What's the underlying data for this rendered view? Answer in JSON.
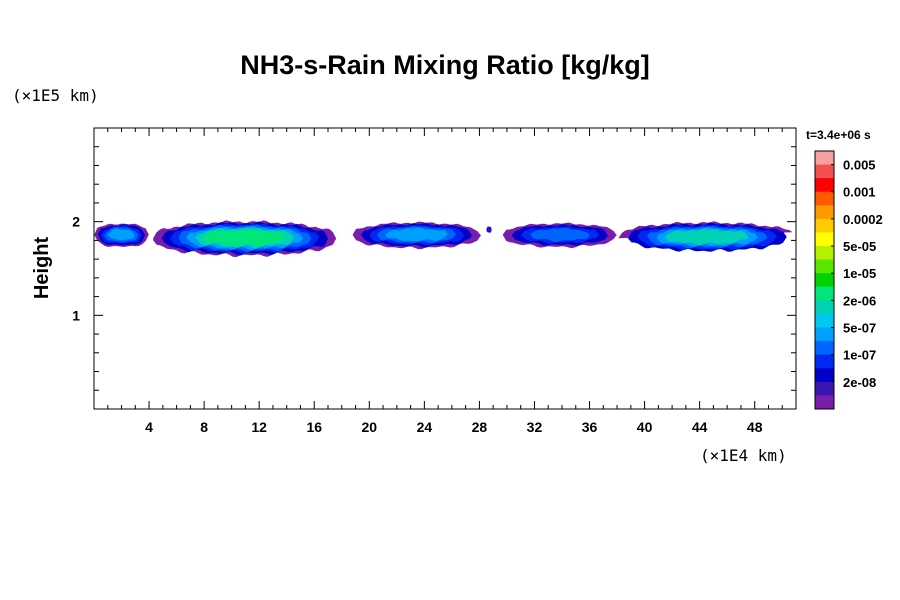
{
  "chart_data": {
    "type": "heatmap",
    "title": "NH3-s-Rain Mixing Ratio [kg/kg]",
    "ylabel": "Height",
    "xlabel": "",
    "x_unit": "(×1E4 km)",
    "y_unit": "(×1E5 km)",
    "time_label": "t=3.4e+06 s",
    "xlim": [
      0,
      51
    ],
    "ylim": [
      0,
      3
    ],
    "x_ticks": [
      4,
      8,
      12,
      16,
      20,
      24,
      28,
      32,
      36,
      40,
      44,
      48
    ],
    "x_tick_labels": [
      "4",
      "8",
      "12",
      "16",
      "20",
      "24",
      "28",
      "32",
      "36",
      "40",
      "44",
      "48"
    ],
    "y_ticks": [
      1,
      2
    ],
    "y_tick_labels": [
      "1",
      "2"
    ],
    "colorbar": {
      "labels": [
        "0.005",
        "0.001",
        "0.0002",
        "5e-05",
        "1e-05",
        "2e-06",
        "5e-07",
        "1e-07",
        "2e-08"
      ],
      "colors_top_to_bottom": [
        "#f8a0a0",
        "#f05050",
        "#ff0000",
        "#ff5a00",
        "#ff9900",
        "#ffcc00",
        "#ffff00",
        "#b4f000",
        "#5ae600",
        "#00d200",
        "#00e678",
        "#00d2b4",
        "#00c8f0",
        "#00a0ff",
        "#0064ff",
        "#0028f0",
        "#0000c8",
        "#3c14b4",
        "#781eaa"
      ]
    },
    "cloud_blobs": [
      {
        "x0": 0.0,
        "x1": 4.0,
        "ybot": 1.73,
        "ytop": 1.98,
        "level": 3
      },
      {
        "x0": 4.3,
        "x1": 17.6,
        "ybot": 1.64,
        "ytop": 2.0,
        "level": 5
      },
      {
        "x0": 18.8,
        "x1": 28.1,
        "ybot": 1.72,
        "ytop": 1.99,
        "level": 3
      },
      {
        "x0": 28.5,
        "x1": 28.9,
        "ybot": 1.88,
        "ytop": 1.95,
        "level": 1
      },
      {
        "x0": 29.7,
        "x1": 38.0,
        "ybot": 1.73,
        "ytop": 1.98,
        "level": 2
      },
      {
        "x0": 38.1,
        "x1": 51.0,
        "ybot": 1.67,
        "ytop": 1.99,
        "level": 4
      }
    ]
  }
}
